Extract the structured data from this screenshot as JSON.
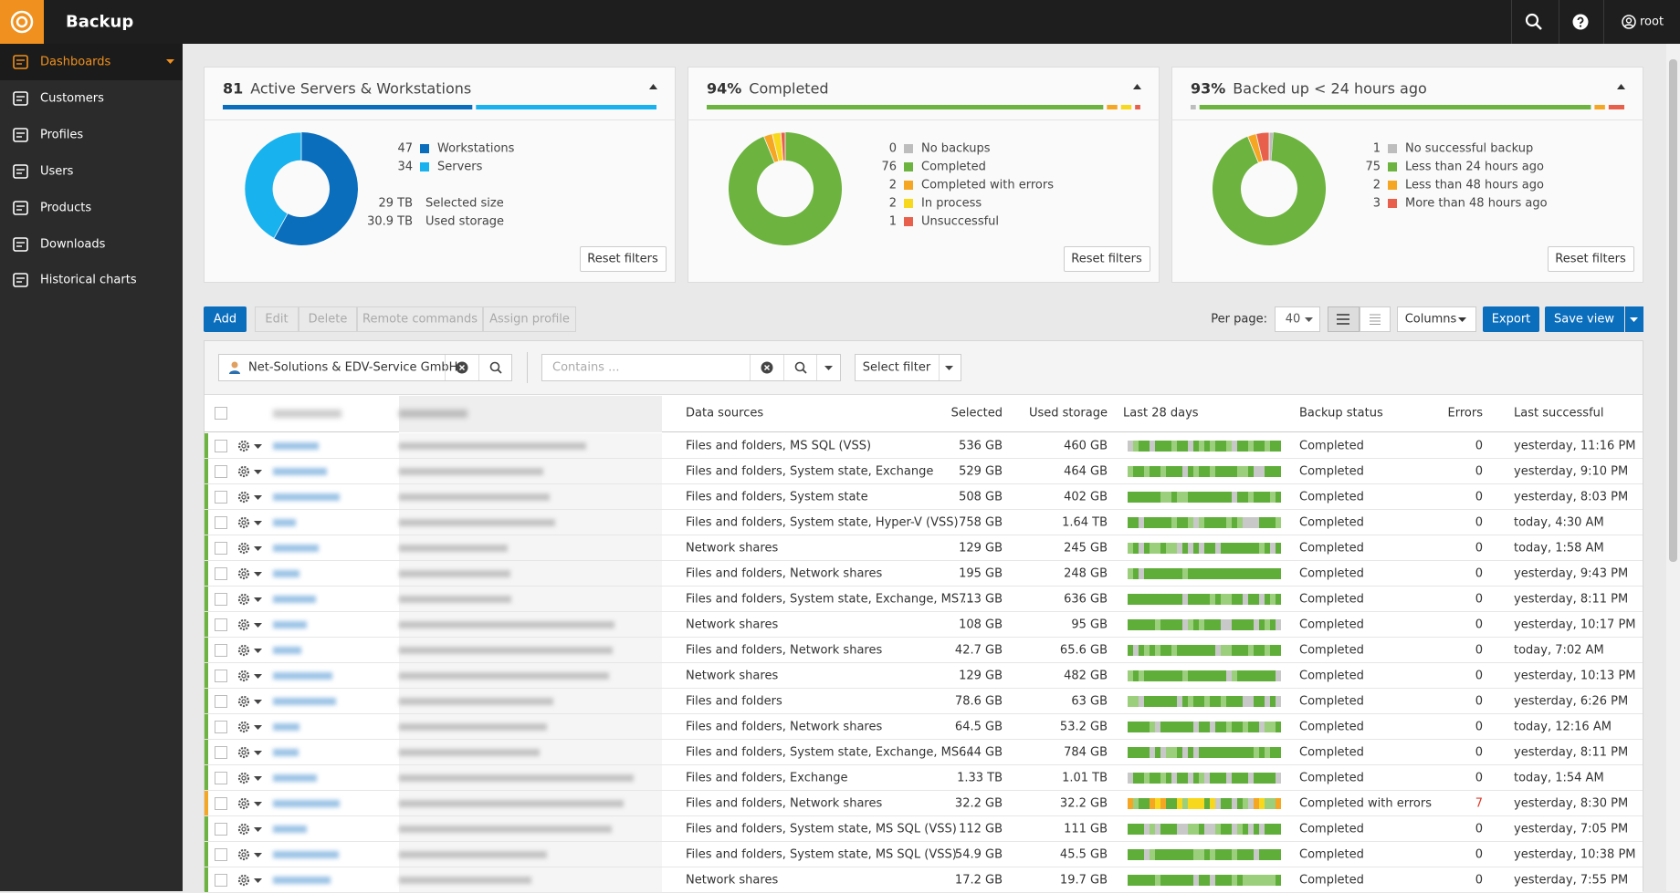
{
  "app": {
    "title": "Backup",
    "user": "root"
  },
  "sidebar": [
    "Dashboards",
    "Customers",
    "Profiles",
    "Users",
    "Products",
    "Downloads",
    "Historical charts"
  ],
  "cards": [
    {
      "count": "81",
      "title": "Active Servers & Workstations",
      "legend": [
        {
          "value": 47,
          "label": "Workstations",
          "color": "#0a6ebd"
        },
        {
          "value": 34,
          "label": "Servers",
          "color": "#18b2ef"
        }
      ],
      "stats": [
        {
          "value": "29 TB",
          "label": "Selected size"
        },
        {
          "value": "30.9 TB",
          "label": "Used storage"
        }
      ],
      "reset": "Reset filters"
    },
    {
      "count": "94%",
      "title": "Completed",
      "legend": [
        {
          "value": 0,
          "label": "No backups",
          "color": "#bdbdbd"
        },
        {
          "value": 76,
          "label": "Completed",
          "color": "#6db33f"
        },
        {
          "value": 2,
          "label": "Completed with errors",
          "color": "#f5a623"
        },
        {
          "value": 2,
          "label": "In process",
          "color": "#f8d81c"
        },
        {
          "value": 1,
          "label": "Unsuccessful",
          "color": "#e8604c"
        }
      ],
      "stats": [],
      "reset": "Reset filters"
    },
    {
      "count": "93%",
      "title": "Backed up < 24 hours ago",
      "legend": [
        {
          "value": 1,
          "label": "No successful backup",
          "color": "#bdbdbd"
        },
        {
          "value": 75,
          "label": "Less than 24 hours ago",
          "color": "#6db33f"
        },
        {
          "value": 2,
          "label": "Less than 48 hours ago",
          "color": "#f5a623"
        },
        {
          "value": 3,
          "label": "More than 48 hours ago",
          "color": "#e8604c"
        }
      ],
      "stats": [],
      "reset": "Reset filters"
    }
  ],
  "toolbar": {
    "buttons": [
      "Add",
      "Edit",
      "Delete",
      "Remote commands",
      "Assign profile"
    ],
    "per_page_label": "Per page:",
    "per_page": "40",
    "columns": "Columns",
    "export": "Export",
    "save_view": "Save view"
  },
  "filters": {
    "customer": "Net-Solutions & EDV-Service GmbH",
    "search_placeholder": "Contains ...",
    "select_filter": "Select filter"
  },
  "table": {
    "columns": [
      "Data sources",
      "Selected",
      "Used storage",
      "Last 28 days",
      "Backup status",
      "Errors",
      "Last successful"
    ],
    "rows": [
      {
        "data_sources": "Files and folders, MS SQL (VSS)",
        "selected": "536 GB",
        "used": "460 GB",
        "status": "Completed",
        "errors": 0,
        "last": "yesterday, 11:16 PM"
      },
      {
        "data_sources": "Files and folders, System state, Exchange",
        "selected": "529 GB",
        "used": "464 GB",
        "status": "Completed",
        "errors": 0,
        "last": "yesterday, 9:10 PM"
      },
      {
        "data_sources": "Files and folders, System state",
        "selected": "508 GB",
        "used": "402 GB",
        "status": "Completed",
        "errors": 0,
        "last": "yesterday, 8:03 PM"
      },
      {
        "data_sources": "Files and folders, System state, Hyper-V (VSS)",
        "selected": "758 GB",
        "used": "1.64 TB",
        "status": "Completed",
        "errors": 0,
        "last": "today, 4:30 AM"
      },
      {
        "data_sources": "Network shares",
        "selected": "129 GB",
        "used": "245 GB",
        "status": "Completed",
        "errors": 0,
        "last": "today, 1:58 AM"
      },
      {
        "data_sources": "Files and folders, Network shares",
        "selected": "195 GB",
        "used": "248 GB",
        "status": "Completed",
        "errors": 0,
        "last": "yesterday, 9:43 PM"
      },
      {
        "data_sources": "Files and folders, System state, Exchange, MS ...",
        "selected": "713 GB",
        "used": "636 GB",
        "status": "Completed",
        "errors": 0,
        "last": "yesterday, 8:11 PM"
      },
      {
        "data_sources": "Network shares",
        "selected": "108 GB",
        "used": "95 GB",
        "status": "Completed",
        "errors": 0,
        "last": "yesterday, 10:17 PM"
      },
      {
        "data_sources": "Files and folders, Network shares",
        "selected": "42.7 GB",
        "used": "65.6 GB",
        "status": "Completed",
        "errors": 0,
        "last": "today, 7:02 AM"
      },
      {
        "data_sources": "Network shares",
        "selected": "129 GB",
        "used": "482 GB",
        "status": "Completed",
        "errors": 0,
        "last": "yesterday, 10:13 PM"
      },
      {
        "data_sources": "Files and folders",
        "selected": "78.6 GB",
        "used": "63 GB",
        "status": "Completed",
        "errors": 0,
        "last": "yesterday, 6:26 PM"
      },
      {
        "data_sources": "Files and folders, Network shares",
        "selected": "64.5 GB",
        "used": "53.2 GB",
        "status": "Completed",
        "errors": 0,
        "last": "today, 12:16 AM"
      },
      {
        "data_sources": "Files and folders, System state, Exchange, MS ...",
        "selected": "644 GB",
        "used": "784 GB",
        "status": "Completed",
        "errors": 0,
        "last": "yesterday, 8:11 PM"
      },
      {
        "data_sources": "Files and folders, Exchange",
        "selected": "1.33 TB",
        "used": "1.01 TB",
        "status": "Completed",
        "errors": 0,
        "last": "today, 1:54 AM"
      },
      {
        "data_sources": "Files and folders, Network shares",
        "selected": "32.2 GB",
        "used": "32.2 GB",
        "status": "Completed with errors",
        "errors": 7,
        "last": "yesterday, 8:30 PM"
      },
      {
        "data_sources": "Files and folders, System state, MS SQL (VSS)",
        "selected": "112 GB",
        "used": "111 GB",
        "status": "Completed",
        "errors": 0,
        "last": "yesterday, 7:05 PM"
      },
      {
        "data_sources": "Files and folders, System state, MS SQL (VSS)",
        "selected": "54.9 GB",
        "used": "45.5 GB",
        "status": "Completed",
        "errors": 0,
        "last": "yesterday, 10:38 PM"
      },
      {
        "data_sources": "Network shares",
        "selected": "17.2 GB",
        "used": "19.7 GB",
        "status": "Completed",
        "errors": 0,
        "last": "yesterday, 7:55 PM"
      }
    ]
  }
}
